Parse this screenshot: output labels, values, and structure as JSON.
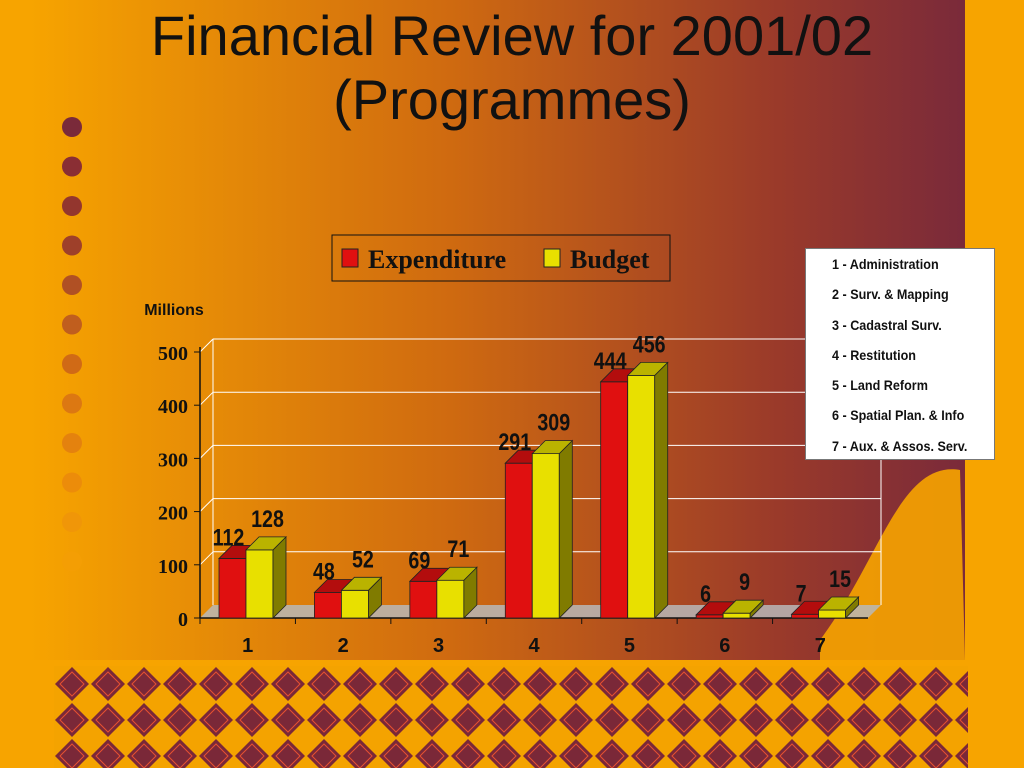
{
  "slide": {
    "title_line1": "Financial Review for 2001/02",
    "title_line2": "(Programmes)"
  },
  "colors": {
    "background": "#f7a400",
    "gradient_end": "#7a2a3a",
    "expenditure": "#e01010",
    "budget": "#e8e000",
    "pattern_dark": "#7a2838",
    "pattern_light": "#f4a300"
  },
  "programme_legend": [
    "1 - Administration",
    "2 - Surv. & Mapping",
    "3 - Cadastral Surv.",
    "4 - Restitution",
    "5 - Land Reform",
    "6 - Spatial Plan. & Info",
    "7 - Aux. & Assos. Serv."
  ],
  "chart_data": {
    "type": "bar",
    "categories": [
      "1",
      "2",
      "3",
      "4",
      "5",
      "6",
      "7"
    ],
    "series": [
      {
        "name": "Expenditure",
        "values": [
          112,
          48,
          69,
          291,
          444,
          6,
          7
        ]
      },
      {
        "name": "Budget",
        "values": [
          128,
          52,
          71,
          309,
          456,
          9,
          15
        ]
      }
    ],
    "ylabel": "Millions",
    "ylim": [
      0,
      500
    ],
    "yticks": [
      0,
      100,
      200,
      300,
      400,
      500
    ],
    "grid": true,
    "legend_position": "top",
    "three_d": true,
    "data_labels": true
  }
}
